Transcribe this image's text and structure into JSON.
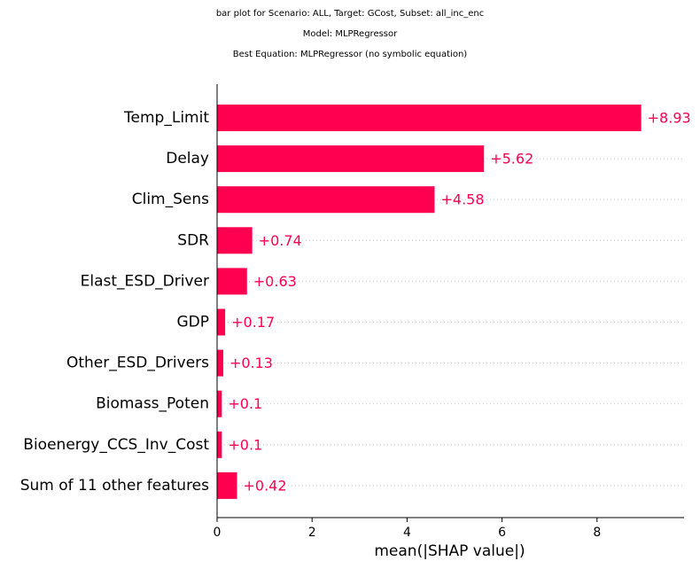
{
  "header": {
    "line1": "bar plot for Scenario: ALL, Target: GCost, Subset: all_inc_enc",
    "line2": "Model: MLPRegressor",
    "line3": "Best Equation: MLPRegressor (no symbolic equation)"
  },
  "chart_data": {
    "type": "bar",
    "orientation": "horizontal",
    "xlabel": "mean(|SHAP value|)",
    "xlim": [
      0,
      9.8
    ],
    "xticks": [
      0,
      2,
      4,
      6,
      8
    ],
    "categories": [
      "Temp_Limit",
      "Delay",
      "Clim_Sens",
      "SDR",
      "Elast_ESD_Driver",
      "GDP",
      "Other_ESD_Drivers",
      "Biomass_Poten",
      "Bioenergy_CCS_Inv_Cost",
      "Sum of 11 other features"
    ],
    "values": [
      8.93,
      5.62,
      4.58,
      0.74,
      0.63,
      0.17,
      0.13,
      0.1,
      0.1,
      0.42
    ],
    "value_labels": [
      "+8.93",
      "+5.62",
      "+4.58",
      "+0.74",
      "+0.63",
      "+0.17",
      "+0.13",
      "+0.1",
      "+0.1",
      "+0.42"
    ],
    "bar_color": "#ff0051",
    "label_color": "#ff0051",
    "gridlines": "dotted-horizontal"
  }
}
